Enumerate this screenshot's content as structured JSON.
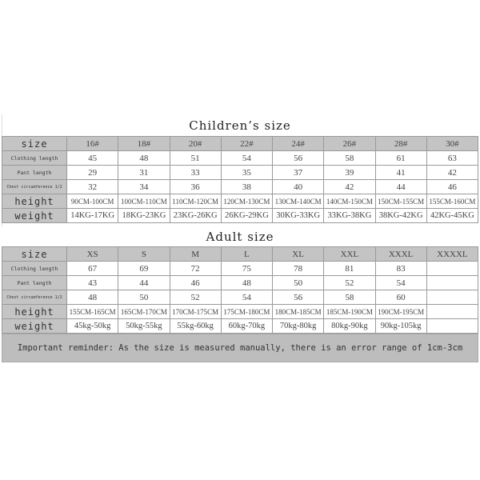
{
  "children": {
    "title": "Children’s size",
    "rows": [
      {
        "label": "size",
        "cells": [
          "16#",
          "18#",
          "20#",
          "22#",
          "24#",
          "26#",
          "28#",
          "30#"
        ]
      },
      {
        "label": "Clothing length",
        "cells": [
          "45",
          "48",
          "51",
          "54",
          "56",
          "58",
          "61",
          "63"
        ]
      },
      {
        "label": "Pant length",
        "cells": [
          "29",
          "31",
          "33",
          "35",
          "37",
          "39",
          "41",
          "42"
        ]
      },
      {
        "label": "Chest circumference 1/2",
        "cells": [
          "32",
          "34",
          "36",
          "38",
          "40",
          "42",
          "44",
          "46"
        ]
      },
      {
        "label": "height",
        "cells": [
          "90CM-100CM",
          "100CM-110CM",
          "110CM-120CM",
          "120CM-130CM",
          "130CM-140CM",
          "140CM-150CM",
          "150CM-155CM",
          "155CM-160CM"
        ]
      },
      {
        "label": "weight",
        "cells": [
          "14KG-17KG",
          "18KG-23KG",
          "23KG-26KG",
          "26KG-29KG",
          "30KG-33KG",
          "33KG-38KG",
          "38KG-42KG",
          "42KG-45KG"
        ]
      }
    ]
  },
  "adult": {
    "title": "Adult size",
    "rows": [
      {
        "label": "size",
        "cells": [
          "XS",
          "S",
          "M",
          "L",
          "XL",
          "XXL",
          "XXXL",
          "XXXXL"
        ]
      },
      {
        "label": "Clothing length",
        "cells": [
          "67",
          "69",
          "72",
          "75",
          "78",
          "81",
          "83",
          ""
        ]
      },
      {
        "label": "Pant length",
        "cells": [
          "43",
          "44",
          "46",
          "48",
          "50",
          "52",
          "54",
          ""
        ]
      },
      {
        "label": "Chest circumference 1/2",
        "cells": [
          "48",
          "50",
          "52",
          "54",
          "56",
          "58",
          "60",
          ""
        ]
      },
      {
        "label": "height",
        "cells": [
          "155CM-165CM",
          "165CM-170CM",
          "170CM-175CM",
          "175CM-180CM",
          "180CM-185CM",
          "185CM-190CM",
          "190CM-195CM",
          ""
        ]
      },
      {
        "label": "weight",
        "cells": [
          "45kg-50kg",
          "50kg-55kg",
          "55kg-60kg",
          "60kg-70kg",
          "70kg-80kg",
          "80kg-90kg",
          "90kg-105kg",
          ""
        ]
      }
    ]
  },
  "reminder": "Important reminder: As the size is measured manually, there is an error range of 1cm-3cm"
}
